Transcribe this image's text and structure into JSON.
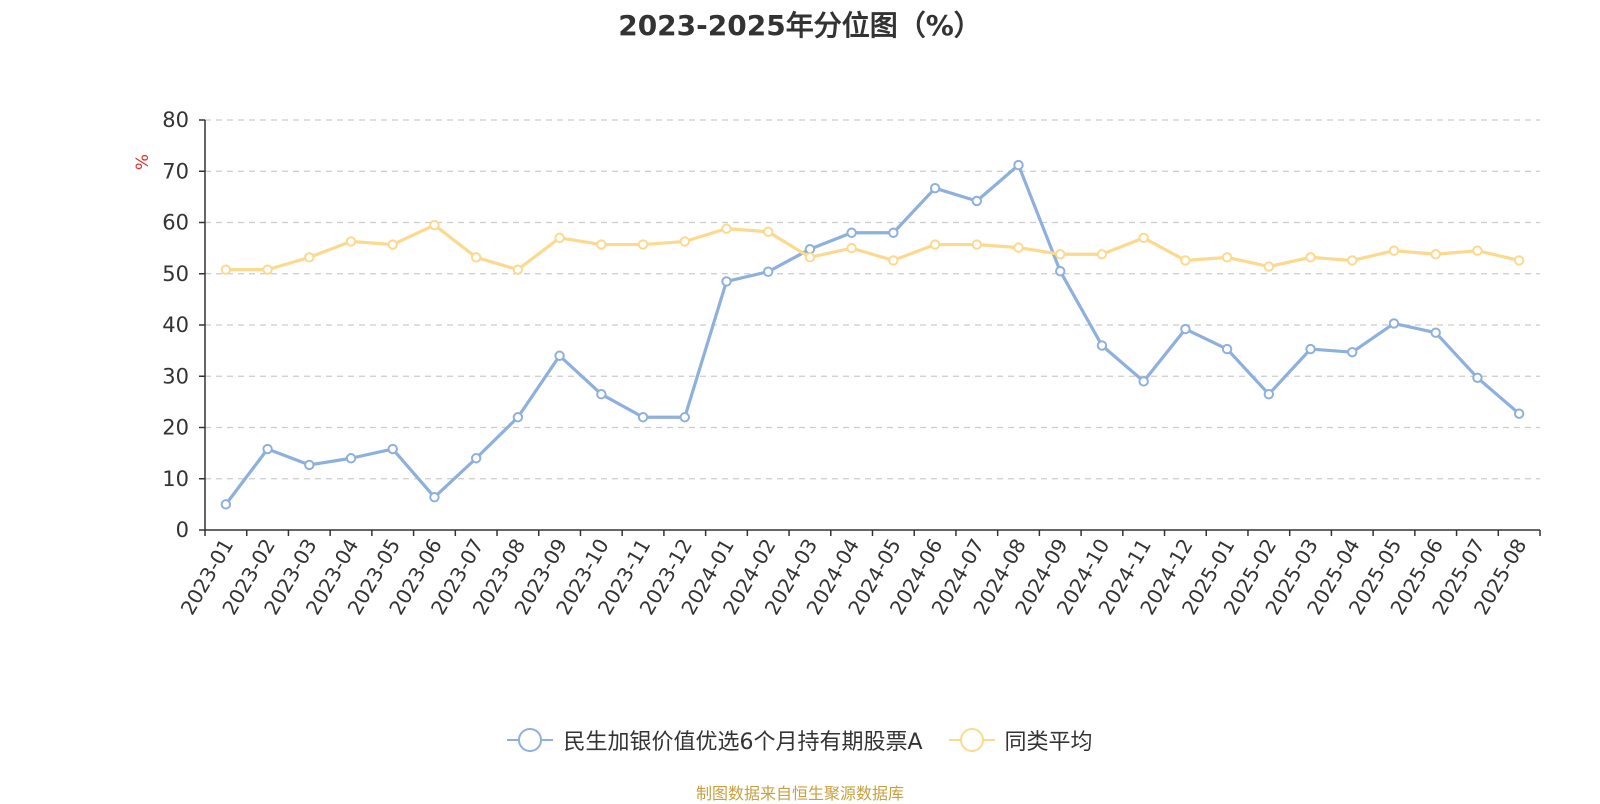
{
  "chart_data": {
    "type": "line",
    "title": "2023-2025年分位图（%）",
    "ylabel": "%",
    "ylim": [
      0,
      80
    ],
    "yticks": [
      0,
      10,
      20,
      30,
      40,
      50,
      60,
      70,
      80
    ],
    "grid": true,
    "legend_position": "bottom",
    "categories": [
      "2023-01",
      "2023-02",
      "2023-03",
      "2023-04",
      "2023-05",
      "2023-06",
      "2023-07",
      "2023-08",
      "2023-09",
      "2023-10",
      "2023-11",
      "2023-12",
      "2024-01",
      "2024-02",
      "2024-03",
      "2024-04",
      "2024-05",
      "2024-06",
      "2024-07",
      "2024-08",
      "2024-09",
      "2024-10",
      "2024-11",
      "2024-12",
      "2025-01",
      "2025-02",
      "2025-03",
      "2025-04",
      "2025-05",
      "2025-06",
      "2025-07",
      "2025-08"
    ],
    "series": [
      {
        "name": "民生加银价值优选6个月持有期股票A",
        "color": "#8eb0dc",
        "values": [
          5,
          15.8,
          12.7,
          14,
          15.8,
          6.4,
          14,
          22,
          34,
          26.5,
          22,
          22,
          48.5,
          50.4,
          54.8,
          58,
          58,
          66.7,
          64.2,
          71.2,
          50.5,
          36,
          29,
          39.2,
          35.3,
          26.5,
          35.3,
          34.7,
          40.3,
          38.5,
          29.7,
          22.7
        ]
      },
      {
        "name": "同类平均",
        "color": "#fbd98f",
        "values": [
          50.8,
          50.8,
          53.2,
          56.3,
          55.7,
          59.5,
          53.2,
          50.8,
          57,
          55.7,
          55.7,
          56.3,
          58.8,
          58.2,
          53.2,
          55,
          52.6,
          55.7,
          55.7,
          55.1,
          53.8,
          53.8,
          57,
          52.6,
          53.2,
          51.4,
          53.2,
          52.6,
          54.5,
          53.8,
          54.5,
          52.6
        ]
      }
    ]
  },
  "footer": "制图数据来自恒生聚源数据库"
}
